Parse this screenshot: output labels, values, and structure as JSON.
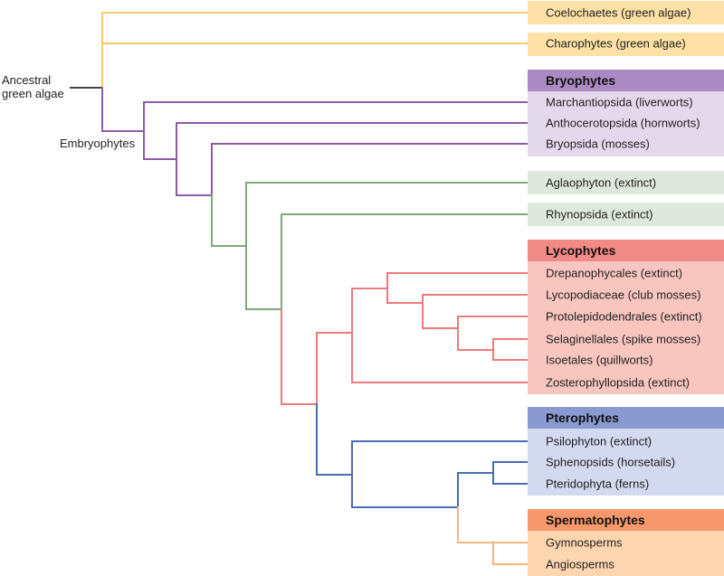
{
  "colors": {
    "algae_line": "#f8c96c",
    "algae_box": "#fde1a6",
    "bryo_line": "#8e5aa8",
    "bryo_header": "#ab8ac4",
    "bryo_box": "#e4d8ec",
    "early_line": "#7fa97a",
    "early_box": "#dfe8dc",
    "lyco_line": "#ee7b7b",
    "lyco_header": "#f28a85",
    "lyco_box": "#f8c5bf",
    "ptero_line": "#4a6cb3",
    "ptero_header": "#8a9ad0",
    "ptero_box": "#d3d9ee",
    "sperm_line": "#f7b679",
    "sperm_header": "#f6986c",
    "sperm_box": "#fdd6b0",
    "root_line": "#444444"
  },
  "labels": {
    "root": "Ancestral green algae",
    "embryophytes": "Embryophytes"
  },
  "groups": {
    "coelochaetes": "Coelochaetes (green algae)",
    "charophytes": "Charophytes (green algae)",
    "bryophytes": {
      "title": "Bryophytes",
      "taxa": [
        "Marchantiopsida (liverworts)",
        "Anthocerotopsida (hornworts)",
        "Bryopsida (mosses)"
      ]
    },
    "aglaophyton": "Aglaophyton (extinct)",
    "rhynopsida": "Rhynopsida (extinct)",
    "lycophytes": {
      "title": "Lycophytes",
      "taxa": [
        "Drepanophycales (extinct)",
        "Lycopodiaceae (club mosses)",
        "Protolepidodendrales (extinct)",
        "Selaginellales (spike mosses)",
        "Isoetales (quillworts)",
        "Zosterophyllopsida (extinct)"
      ]
    },
    "pterophytes": {
      "title": "Pterophytes",
      "taxa": [
        "Psilophyton (extinct)",
        "Sphenopsids (horsetails)",
        "Pteridophyta (ferns)"
      ]
    },
    "spermatophytes": {
      "title": "Spermatophytes",
      "taxa": [
        "Gymnosperms",
        "Angiosperms"
      ]
    }
  }
}
